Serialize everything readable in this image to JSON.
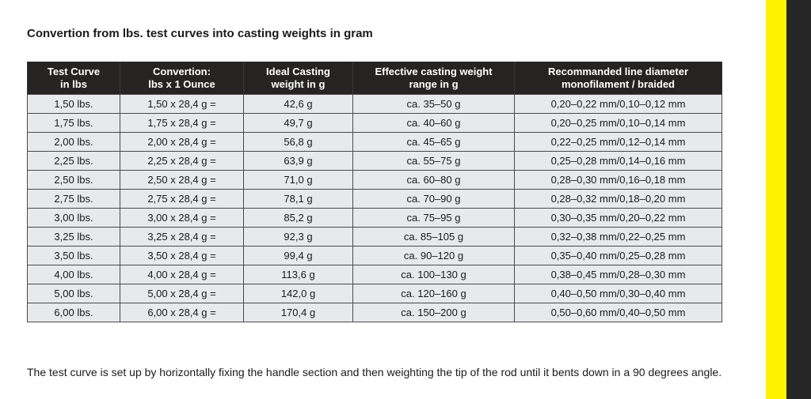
{
  "title": "Convertion from lbs. test curves into casting weights in gram",
  "table": {
    "headers": [
      [
        "Test Curve",
        "in lbs"
      ],
      [
        "Convertion:",
        "lbs x 1 Ounce"
      ],
      [
        "Ideal Casting",
        "weight in g"
      ],
      [
        "Effective casting weight",
        "range in g"
      ],
      [
        "Recommanded line diameter",
        "monofilament / braided"
      ]
    ],
    "rows": [
      [
        "1,50 lbs.",
        "1,50 x 28,4 g =",
        "42,6 g",
        "ca. 35–50 g",
        "0,20–0,22 mm/0,10–0,12 mm"
      ],
      [
        "1,75 lbs.",
        "1,75 x 28,4 g =",
        "49,7 g",
        "ca. 40–60 g",
        "0,20–0,25 mm/0,10–0,14 mm"
      ],
      [
        "2,00 lbs.",
        "2,00 x 28,4 g =",
        "56,8 g",
        "ca. 45–65 g",
        "0,22–0,25 mm/0,12–0,14 mm"
      ],
      [
        "2,25 lbs.",
        "2,25 x 28,4 g =",
        "63,9 g",
        "ca. 55–75 g",
        "0,25–0,28 mm/0,14–0,16 mm"
      ],
      [
        "2,50 lbs.",
        "2,50 x 28,4 g =",
        "71,0 g",
        "ca. 60–80 g",
        "0,28–0,30 mm/0,16–0,18 mm"
      ],
      [
        "2,75 lbs.",
        "2,75 x 28,4 g =",
        "78,1 g",
        "ca. 70–90 g",
        "0,28–0,32 mm/0,18–0,20 mm"
      ],
      [
        "3,00 lbs.",
        "3,00 x 28,4 g =",
        "85,2 g",
        "ca. 75–95 g",
        "0,30–0,35 mm/0,20–0,22 mm"
      ],
      [
        "3,25 lbs.",
        "3,25 x 28,4 g =",
        "92,3 g",
        "ca. 85–105 g",
        "0,32–0,38 mm/0,22–0,25 mm"
      ],
      [
        "3,50 lbs.",
        "3,50 x 28,4 g =",
        "99,4 g",
        "ca. 90–120 g",
        "0,35–0,40 mm/0,25–0,28 mm"
      ],
      [
        "4,00 lbs.",
        "4,00 x 28,4 g =",
        "113,6 g",
        "ca. 100–130 g",
        "0,38–0,45 mm/0,28–0,30 mm"
      ],
      [
        "5,00 lbs.",
        "5,00 x 28,4 g =",
        "142,0 g",
        "ca. 120–160 g",
        "0,40–0,50 mm/0,30–0,40 mm"
      ],
      [
        "6,00 lbs.",
        "6,00 x 28,4 g =",
        "170,4 g",
        "ca. 150–200 g",
        "0,50–0,60 mm/0,40–0,50 mm"
      ]
    ]
  },
  "footnote": "The test curve is set up by horizontally fixing the handle section and then weighting the tip of the rod until it bents down in a 90 degrees angle.",
  "colors": {
    "header_bg": "#252423",
    "row_bg": "#e8e9eb",
    "accent_yellow": "#fff200",
    "accent_dark": "#262626"
  }
}
